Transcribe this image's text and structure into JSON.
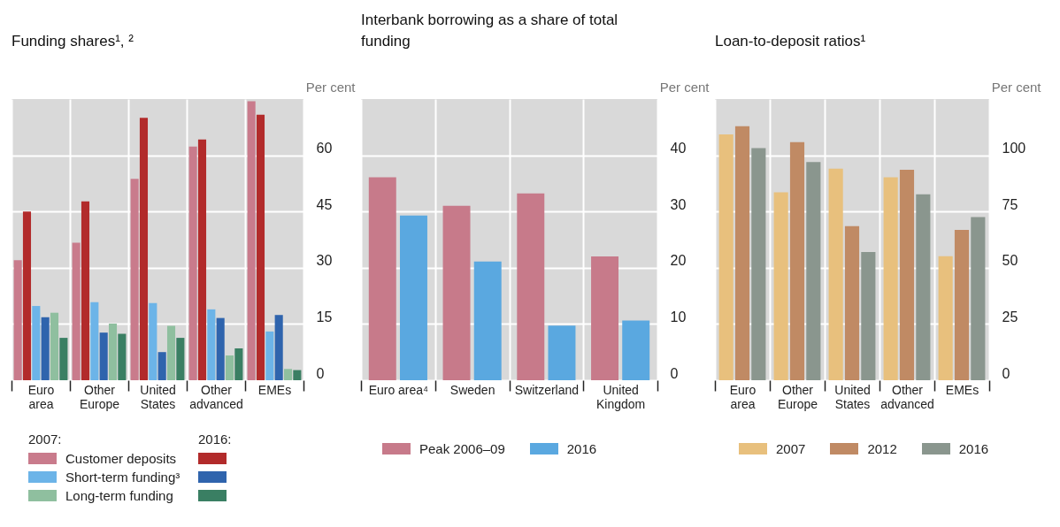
{
  "chart_data": [
    {
      "type": "bar",
      "title": "Funding shares¹, ²",
      "ylabel": "Per cent",
      "categories": [
        "Euro area",
        "Other Europe",
        "United States",
        "Other advanced",
        "EMEs"
      ],
      "ylim": [
        0,
        75
      ],
      "yticks": [
        0,
        15,
        30,
        45,
        60
      ],
      "grid": true,
      "legend": "bottom",
      "legend_title": "2007:",
      "annotations": [
        "2016:"
      ],
      "series": [
        {
          "name": "Customer deposits",
          "color": "#c97b8c",
          "values": [
            32,
            36.7,
            53.7,
            62.3,
            74.4
          ]
        },
        {
          "color": "#b22b2b",
          "values": [
            45,
            47.7,
            70,
            64.2,
            70.8
          ]
        },
        {
          "name": "Short-term funding³",
          "color": "#6cb4e8",
          "values": [
            19.8,
            20.8,
            20.6,
            18.9,
            13
          ]
        },
        {
          "color": "#2f64ad",
          "values": [
            16.8,
            12.7,
            7.5,
            16.6,
            17.4
          ]
        },
        {
          "name": "Long-term funding",
          "color": "#8fbf9f",
          "values": [
            18,
            15.1,
            14.5,
            6.6,
            3
          ]
        },
        {
          "color": "#3a7f63",
          "values": [
            11.3,
            12.4,
            11.3,
            8.5,
            2.7
          ]
        }
      ]
    },
    {
      "type": "bar",
      "title": "Interbank borrowing as a share of total funding",
      "ylabel": "Per cent",
      "categories": [
        "Euro area⁴",
        "Sweden",
        "Switzerland",
        "United Kingdom"
      ],
      "ylim": [
        0,
        50
      ],
      "yticks": [
        0,
        10,
        20,
        30,
        40
      ],
      "grid": true,
      "legend": "bottom",
      "series": [
        {
          "name": "Peak 2006–09",
          "color": "#c77a8a",
          "values": [
            36.1,
            31,
            33.2,
            22
          ]
        },
        {
          "name": "2016",
          "color": "#5aa8e0",
          "values": [
            29.3,
            21.1,
            9.7,
            10.6
          ]
        }
      ]
    },
    {
      "type": "bar",
      "title": "Loan-to-deposit ratios¹",
      "ylabel": "Per cent",
      "categories": [
        "Euro area",
        "Other Europe",
        "United States",
        "Other advanced",
        "EMEs"
      ],
      "ylim": [
        0,
        125
      ],
      "yticks": [
        0,
        25,
        50,
        75,
        100
      ],
      "grid": true,
      "legend": "bottom",
      "series": [
        {
          "name": "2007",
          "color": "#e8c07d",
          "values": [
            109.3,
            83.5,
            94,
            90.2,
            55.1
          ]
        },
        {
          "name": "2012",
          "color": "#c08a64",
          "values": [
            112.9,
            105.8,
            68.5,
            93.6,
            66.8
          ]
        },
        {
          "name": "2016",
          "color": "#8a968e",
          "values": [
            103.2,
            97,
            57,
            82.6,
            72.5
          ]
        }
      ]
    }
  ]
}
